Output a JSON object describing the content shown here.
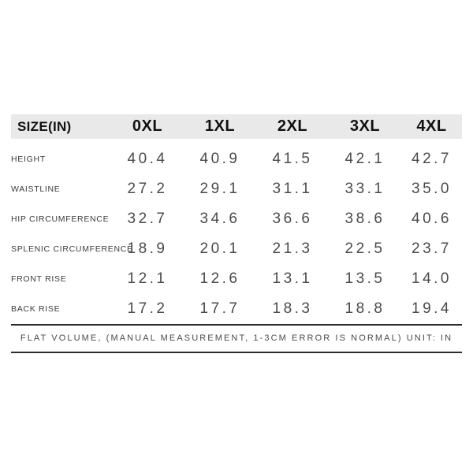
{
  "chart_data": {
    "type": "table",
    "title": "SIZE(IN)",
    "columns": [
      "SIZE(IN)",
      "0XL",
      "1XL",
      "2XL",
      "3XL",
      "4XL"
    ],
    "rows": [
      {
        "label": "HEIGHT",
        "values": [
          "40.4",
          "40.9",
          "41.5",
          "42.1",
          "42.7"
        ]
      },
      {
        "label": "WAISTLINE",
        "values": [
          "27.2",
          "29.1",
          "31.1",
          "33.1",
          "35.0"
        ]
      },
      {
        "label": "HIP CIRCUMFERENCE",
        "values": [
          "32.7",
          "34.6",
          "36.6",
          "38.6",
          "40.6"
        ]
      },
      {
        "label": "SPLENIC CIRCUMFERENCE",
        "values": [
          "18.9",
          "20.1",
          "21.3",
          "22.5",
          "23.7"
        ]
      },
      {
        "label": "FRONT RISE",
        "values": [
          "12.1",
          "12.6",
          "13.1",
          "13.5",
          "14.0"
        ]
      },
      {
        "label": "BACK RISE",
        "values": [
          "17.2",
          "17.7",
          "18.3",
          "18.8",
          "19.4"
        ]
      }
    ],
    "unit": "IN",
    "layout": {
      "grid": false,
      "legend": "none"
    }
  },
  "footer": {
    "note": "FLAT VOLUME, (MANUAL MEASUREMENT, 1-3CM ERROR IS NORMAL) UNIT: IN"
  },
  "colors": {
    "header_bg": "#e9e9e9",
    "header_text": "#111111",
    "label_text": "#3b3b3b",
    "value_text": "#4a4a4a",
    "footer_text": "#4a4a4a",
    "rule": "#2d2d2d"
  }
}
